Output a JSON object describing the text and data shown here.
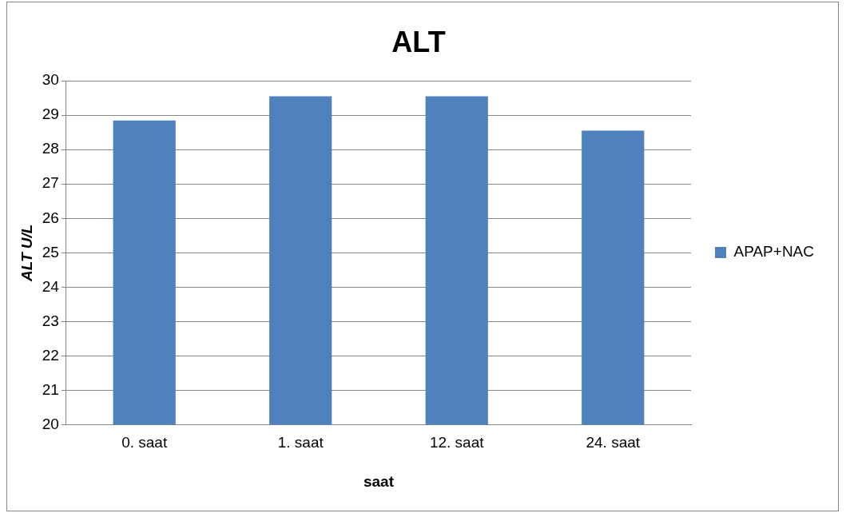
{
  "chart_data": {
    "type": "bar",
    "title": "ALT",
    "xlabel": "saat",
    "ylabel": "ALT U/L",
    "categories": [
      "0. saat",
      "1. saat",
      "12. saat",
      "24. saat"
    ],
    "series": [
      {
        "name": "APAP+NAC",
        "color": "#4f81bd",
        "values": [
          28.85,
          29.55,
          29.55,
          28.55
        ]
      }
    ],
    "ylim": [
      20,
      30
    ],
    "yticks": [
      20,
      21,
      22,
      23,
      24,
      25,
      26,
      27,
      28,
      29,
      30
    ],
    "grid": "y",
    "legend": "right"
  }
}
